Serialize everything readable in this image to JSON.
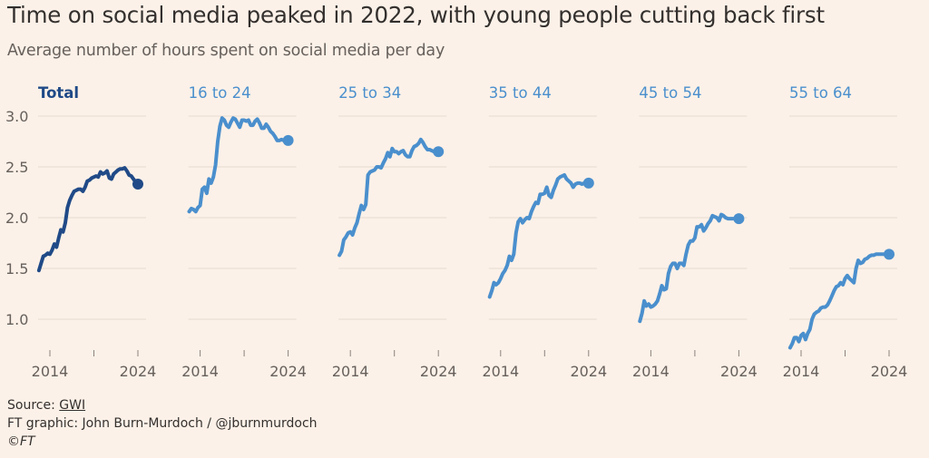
{
  "header": {
    "title": "Time on social media peaked in 2022, with young people cutting back first",
    "subtitle": "Average number of hours spent on social media per day"
  },
  "footer": {
    "source_label": "Source: ",
    "source_link": "GWI",
    "credit": "FT graphic: John Burn-Murdoch / @jburnmurdoch",
    "copyright": "©FT"
  },
  "colors": {
    "background": "#fcf1e8",
    "total": "#204a87",
    "age": "#4a8fcd",
    "grid": "#e6dbd1",
    "tick": "#66605c"
  },
  "chart_data": {
    "type": "line",
    "title": "Time on social media peaked in 2022, with young people cutting back first",
    "subtitle": "Average number of hours spent on social media per day",
    "xlabel": "",
    "ylabel": "",
    "ylim": [
      0.72,
      3.0
    ],
    "yticks": [
      1.0,
      1.5,
      2.0,
      2.5,
      3.0
    ],
    "ytick_labels": [
      "1.0",
      "1.5",
      "2.0",
      "2.5",
      "3.0"
    ],
    "xticks": [
      2014,
      2019,
      2024
    ],
    "xtick_labels": [
      "2014",
      "",
      "2024"
    ],
    "grid": true,
    "x": [
      2012.75,
      2013.0,
      2013.25,
      2013.5,
      2013.75,
      2014.0,
      2014.25,
      2014.5,
      2014.75,
      2015.0,
      2015.25,
      2015.5,
      2015.75,
      2016.0,
      2016.25,
      2016.5,
      2016.75,
      2017.0,
      2017.25,
      2017.5,
      2017.75,
      2018.0,
      2018.25,
      2018.5,
      2018.75,
      2019.0,
      2019.25,
      2019.5,
      2019.75,
      2020.0,
      2020.25,
      2020.5,
      2020.75,
      2021.0,
      2021.25,
      2021.5,
      2021.75,
      2022.0,
      2022.25,
      2022.5,
      2022.75,
      2023.0,
      2023.25,
      2023.5,
      2023.75,
      2024.0
    ],
    "series": [
      {
        "name": "Total",
        "values": [
          1.48,
          1.55,
          1.62,
          1.63,
          1.65,
          1.64,
          1.68,
          1.74,
          1.71,
          1.8,
          1.88,
          1.86,
          1.95,
          2.1,
          2.17,
          2.22,
          2.26,
          2.27,
          2.28,
          2.28,
          2.26,
          2.3,
          2.36,
          2.37,
          2.39,
          2.4,
          2.41,
          2.4,
          2.45,
          2.43,
          2.44,
          2.46,
          2.39,
          2.38,
          2.43,
          2.45,
          2.47,
          2.48,
          2.48,
          2.49,
          2.46,
          2.42,
          2.41,
          2.38,
          2.35,
          2.33
        ]
      },
      {
        "name": "16 to 24",
        "values": [
          2.06,
          2.09,
          2.08,
          2.06,
          2.1,
          2.12,
          2.28,
          2.3,
          2.24,
          2.38,
          2.34,
          2.4,
          2.52,
          2.75,
          2.9,
          2.98,
          2.96,
          2.91,
          2.89,
          2.94,
          2.98,
          2.97,
          2.93,
          2.89,
          2.96,
          2.96,
          2.95,
          2.96,
          2.91,
          2.91,
          2.95,
          2.97,
          2.93,
          2.88,
          2.88,
          2.92,
          2.89,
          2.85,
          2.83,
          2.8,
          2.76,
          2.76,
          2.77,
          2.76,
          2.76,
          2.76
        ]
      },
      {
        "name": "25 to 34",
        "values": [
          1.63,
          1.67,
          1.78,
          1.81,
          1.85,
          1.86,
          1.83,
          1.9,
          1.95,
          2.04,
          2.12,
          2.08,
          2.13,
          2.42,
          2.45,
          2.46,
          2.47,
          2.5,
          2.5,
          2.49,
          2.54,
          2.58,
          2.64,
          2.6,
          2.68,
          2.65,
          2.65,
          2.63,
          2.65,
          2.66,
          2.62,
          2.6,
          2.6,
          2.66,
          2.7,
          2.71,
          2.73,
          2.77,
          2.74,
          2.7,
          2.67,
          2.67,
          2.66,
          2.65,
          2.64,
          2.65
        ]
      },
      {
        "name": "35 to 44",
        "values": [
          1.22,
          1.28,
          1.36,
          1.34,
          1.36,
          1.4,
          1.45,
          1.48,
          1.53,
          1.62,
          1.58,
          1.64,
          1.85,
          1.96,
          1.99,
          1.95,
          1.98,
          2.0,
          1.99,
          2.06,
          2.11,
          2.15,
          2.14,
          2.23,
          2.23,
          2.24,
          2.3,
          2.22,
          2.2,
          2.27,
          2.32,
          2.38,
          2.4,
          2.41,
          2.42,
          2.38,
          2.36,
          2.34,
          2.3,
          2.33,
          2.34,
          2.34,
          2.33,
          2.34,
          2.34,
          2.34
        ]
      },
      {
        "name": "45 to 54",
        "values": [
          0.98,
          1.06,
          1.18,
          1.13,
          1.15,
          1.12,
          1.13,
          1.15,
          1.18,
          1.25,
          1.33,
          1.29,
          1.3,
          1.45,
          1.52,
          1.55,
          1.55,
          1.5,
          1.55,
          1.55,
          1.53,
          1.64,
          1.73,
          1.77,
          1.77,
          1.8,
          1.91,
          1.91,
          1.93,
          1.87,
          1.9,
          1.94,
          1.97,
          2.02,
          2.01,
          2.0,
          1.97,
          2.03,
          2.02,
          2.0,
          1.99,
          1.99,
          1.99,
          1.99,
          1.99,
          1.99
        ]
      },
      {
        "name": "55 to 64",
        "values": [
          0.72,
          0.76,
          0.82,
          0.82,
          0.78,
          0.84,
          0.86,
          0.8,
          0.86,
          0.9,
          1.0,
          1.05,
          1.07,
          1.08,
          1.11,
          1.12,
          1.12,
          1.14,
          1.18,
          1.23,
          1.28,
          1.32,
          1.33,
          1.36,
          1.34,
          1.4,
          1.43,
          1.4,
          1.38,
          1.36,
          1.5,
          1.58,
          1.55,
          1.56,
          1.59,
          1.6,
          1.62,
          1.63,
          1.63,
          1.64,
          1.64,
          1.64,
          1.64,
          1.64,
          1.64,
          1.64
        ]
      }
    ]
  }
}
